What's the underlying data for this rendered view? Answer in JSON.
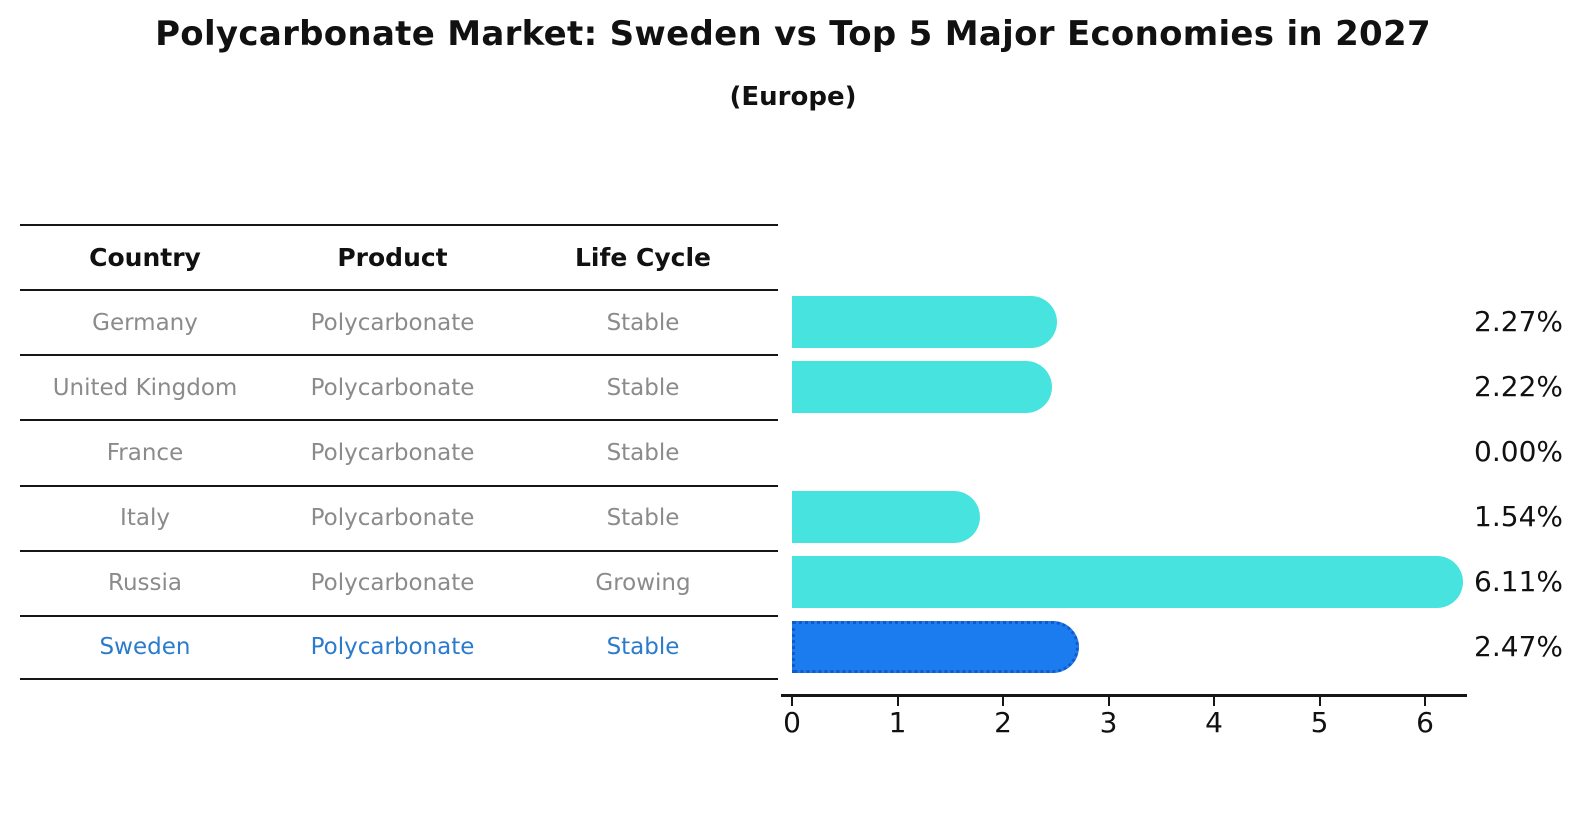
{
  "chart_data": {
    "type": "bar",
    "orientation": "horizontal",
    "title": "Polycarbonate Market: Sweden vs Top 5 Major Economies in 2027",
    "subtitle": "(Europe)",
    "categories": [
      "Germany",
      "United Kingdom",
      "France",
      "Italy",
      "Russia",
      "Sweden"
    ],
    "values": [
      2.27,
      2.22,
      0.0,
      1.54,
      6.11,
      2.47
    ],
    "value_labels": [
      "2.27%",
      "2.22%",
      "0.00%",
      "1.54%",
      "6.11%",
      "2.47%"
    ],
    "x_ticks": [
      0,
      1,
      2,
      3,
      4,
      5,
      6
    ],
    "xlim": [
      0,
      6.4
    ],
    "grid": false,
    "legend": false,
    "highlight_category": "Sweden",
    "highlight_index": 5,
    "colors": {
      "bar": "#47E4DF",
      "highlight_bar": "#1B7CF0",
      "highlight_bar_border": "#1559C8",
      "row_text": "#8b8b8b",
      "highlight_text": "#2B7BCD",
      "label_text": "#111111",
      "axis": "#161616"
    }
  },
  "table": {
    "headers": [
      "Country",
      "Product",
      "Life Cycle"
    ],
    "rows": [
      {
        "country": "Germany",
        "product": "Polycarbonate",
        "life_cycle": "Stable",
        "highlight": false
      },
      {
        "country": "United Kingdom",
        "product": "Polycarbonate",
        "life_cycle": "Stable",
        "highlight": false
      },
      {
        "country": "France",
        "product": "Polycarbonate",
        "life_cycle": "Stable",
        "highlight": false
      },
      {
        "country": "Italy",
        "product": "Polycarbonate",
        "life_cycle": "Stable",
        "highlight": false
      },
      {
        "country": "Russia",
        "product": "Polycarbonate",
        "life_cycle": "Growing",
        "highlight": false
      },
      {
        "country": "Sweden",
        "product": "Polycarbonate",
        "life_cycle": "Stable",
        "highlight": true
      }
    ]
  }
}
